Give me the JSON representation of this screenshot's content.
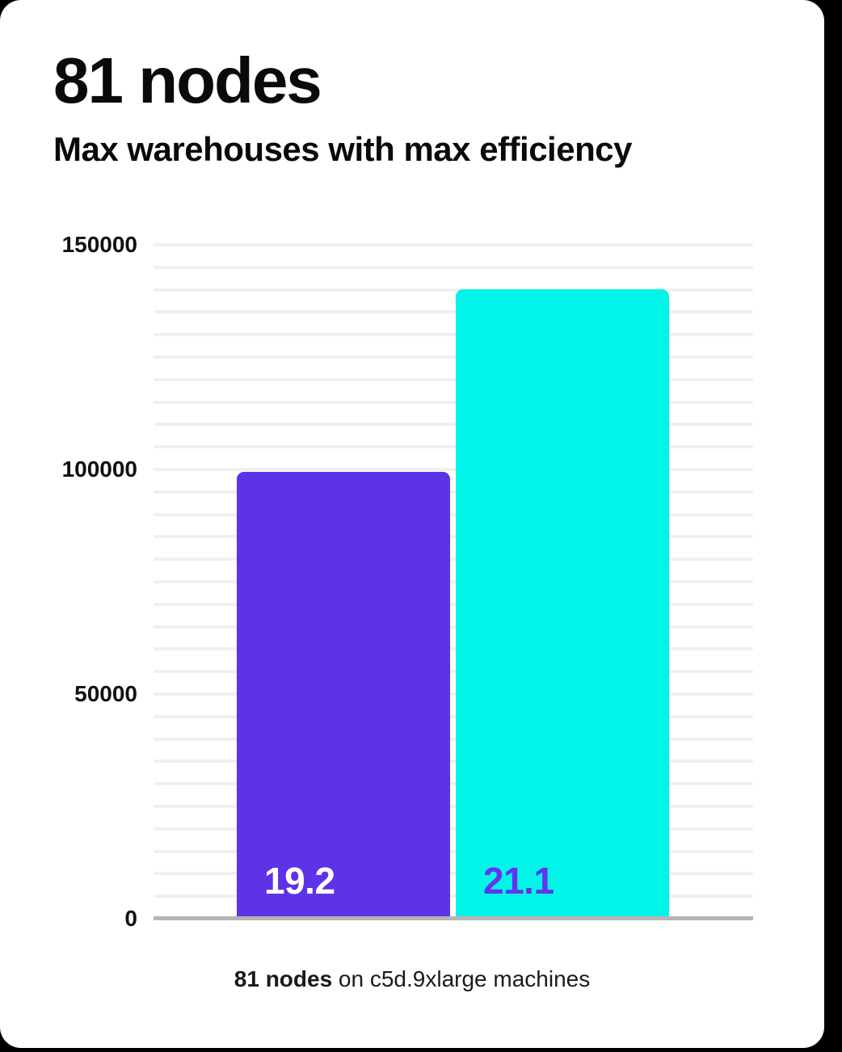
{
  "header": {
    "title": "81 nodes",
    "subtitle": "Max warehouses with max efficiency"
  },
  "caption": {
    "bold": "81 nodes",
    "rest": " on c5d.9xlarge machines"
  },
  "colors": {
    "background": "#000000",
    "card": "#ffffff",
    "grid": "#f0f0f0",
    "axis_line": "#b5b5b5",
    "text": "#0a0a0a",
    "bar_purple": "#5e33e8",
    "bar_cyan": "#00f5e9",
    "label_on_purple": "#ffffff",
    "label_on_cyan": "#6333ee"
  },
  "chart_data": {
    "type": "bar",
    "title": "81 nodes",
    "subtitle": "Max warehouses with max efficiency",
    "caption": "81 nodes on c5d.9xlarge machines",
    "categories": [
      "19.2",
      "21.1"
    ],
    "values": [
      99500,
      140100
    ],
    "bars": [
      {
        "label": "19.2",
        "value": 99500,
        "color": "#5e33e8",
        "label_color": "#ffffff"
      },
      {
        "label": "21.1",
        "value": 140100,
        "color": "#00f5e9",
        "label_color": "#6333ee"
      }
    ],
    "xlabel": "",
    "ylabel": "",
    "ylim": [
      0,
      150000
    ],
    "yticks": [
      0,
      50000,
      100000,
      150000
    ],
    "ytick_labels": [
      "0",
      "50000",
      "100000",
      "150000"
    ],
    "grid_interval": 5000,
    "grid": true,
    "legend": false
  }
}
